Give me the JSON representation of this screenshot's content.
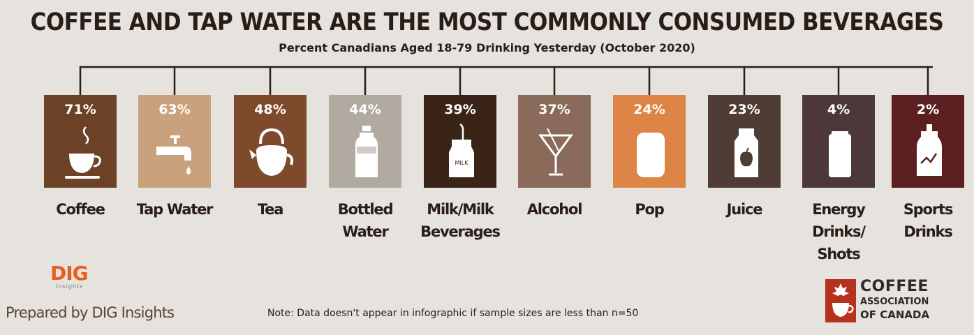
{
  "title": "COFFEE AND TAP WATER ARE THE MOST COMMONLY CONSUMED BEVERAGES",
  "subtitle": "Percent Canadians Aged 18-79 Drinking Yesterday (October 2020)",
  "chart_data": {
    "type": "bar",
    "title": "COFFEE AND TAP WATER ARE THE MOST COMMONLY CONSUMED BEVERAGES",
    "subtitle": "Percent Canadians Aged 18-79 Drinking Yesterday (October 2020)",
    "categories": [
      "Coffee",
      "Tap Water",
      "Tea",
      "Bottled Water",
      "Milk/Milk Beverages",
      "Alcohol",
      "Pop",
      "Juice",
      "Energy Drinks/ Shots",
      "Sports Drinks"
    ],
    "values": [
      71,
      63,
      48,
      44,
      39,
      37,
      24,
      23,
      4,
      2
    ],
    "value_labels": [
      "71%",
      "63%",
      "48%",
      "44%",
      "39%",
      "37%",
      "24%",
      "23%",
      "4%",
      "2%"
    ],
    "unit": "%"
  },
  "items": [
    {
      "pct": "71%",
      "label_lines": [
        "Coffee"
      ],
      "color": "#6b4226",
      "icon": "coffee-cup-icon"
    },
    {
      "pct": "63%",
      "label_lines": [
        "Tap Water"
      ],
      "color": "#c9a27d",
      "icon": "faucet-icon"
    },
    {
      "pct": "48%",
      "label_lines": [
        "Tea"
      ],
      "color": "#7e4a2c",
      "icon": "teapot-icon"
    },
    {
      "pct": "44%",
      "label_lines": [
        "Bottled",
        "Water"
      ],
      "color": "#b1aaa1",
      "icon": "water-bottle-icon"
    },
    {
      "pct": "39%",
      "label_lines": [
        "Milk/Milk",
        "Beverages"
      ],
      "color": "#3a2417",
      "icon": "milk-carton-icon"
    },
    {
      "pct": "37%",
      "label_lines": [
        "Alcohol"
      ],
      "color": "#8a6a58",
      "icon": "martini-glass-icon"
    },
    {
      "pct": "24%",
      "label_lines": [
        "Pop"
      ],
      "color": "#dd8546",
      "icon": "soda-can-icon"
    },
    {
      "pct": "23%",
      "label_lines": [
        "Juice"
      ],
      "color": "#4f3d35",
      "icon": "juice-box-icon"
    },
    {
      "pct": "4%",
      "label_lines": [
        "Energy",
        "Drinks/",
        "Shots"
      ],
      "color": "#4c3838",
      "icon": "energy-can-icon"
    },
    {
      "pct": "2%",
      "label_lines": [
        "Sports",
        "Drinks"
      ],
      "color": "#5c1f1f",
      "icon": "sports-bottle-icon"
    }
  ],
  "milk_icon_text": "MILK",
  "footer": {
    "dig_logo": "DIG",
    "dig_logo_sub": "Insights",
    "prepared_by": "Prepared by DIG Insights",
    "note": "Note: Data doesn't appear in infographic if sample sizes are less than n=50",
    "cac_line1": "COFFEE",
    "cac_line2": "ASSOCIATION",
    "cac_line3": "OF CANADA"
  }
}
